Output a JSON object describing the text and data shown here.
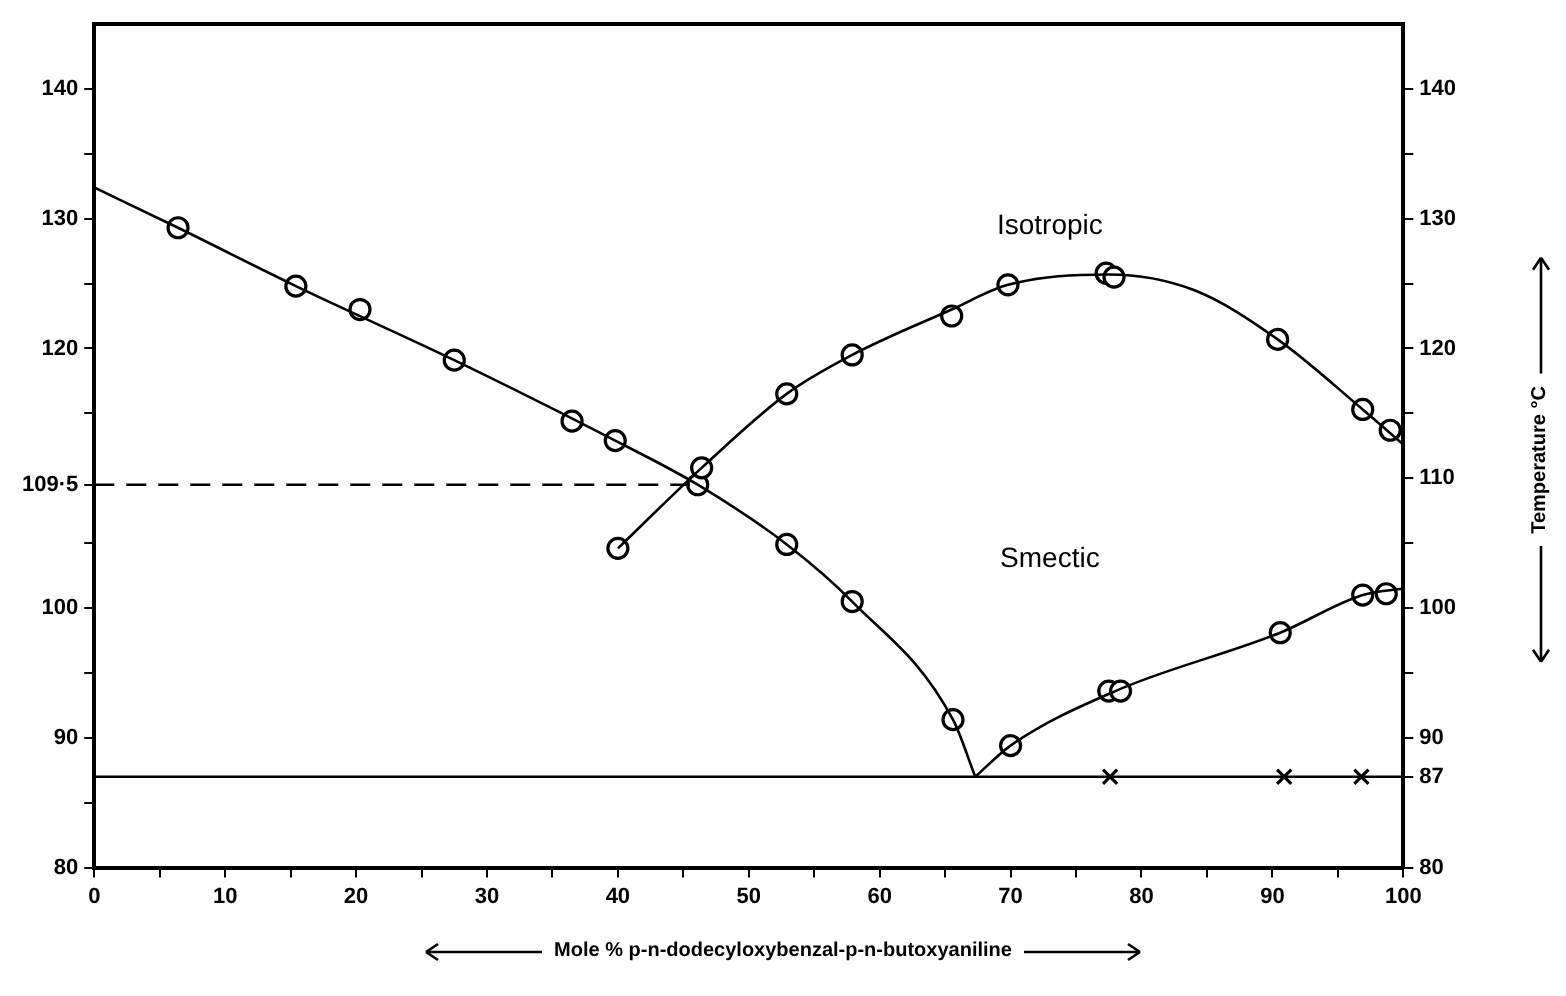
{
  "chart_data": {
    "type": "line",
    "xlabel": "Mole % p-n-dodecyloxybenzal-p-n-butoxyaniline",
    "y2label": "Temperature °C",
    "xlim": [
      0,
      100
    ],
    "xticks": [
      0,
      {
        "value": 5,
        "label": null
      },
      10,
      {
        "value": 15,
        "label": null
      },
      20,
      {
        "value": 25,
        "label": null
      },
      30,
      {
        "value": 35,
        "label": null
      },
      40,
      {
        "value": 45,
        "label": null
      },
      50,
      {
        "value": 55,
        "label": null
      },
      60,
      {
        "value": 65,
        "label": null
      },
      70,
      {
        "value": 75,
        "label": null
      },
      80,
      {
        "value": 85,
        "label": null
      },
      90,
      {
        "value": 95,
        "label": null
      },
      100
    ],
    "ylim": [
      80,
      145
    ],
    "yticks": [
      80,
      {
        "value": 85,
        "label": null
      },
      90,
      {
        "value": 95,
        "label": null
      },
      100,
      {
        "value": 105,
        "label": null
      },
      {
        "value": 109.5,
        "label": "109·5"
      },
      {
        "value": 115,
        "label": null
      },
      120,
      {
        "value": 125,
        "label": null
      },
      130,
      {
        "value": 135,
        "label": null
      },
      140
    ],
    "y2lim": [
      80,
      145
    ],
    "y2ticks": [
      80,
      87,
      90,
      {
        "value": 95,
        "label": null
      },
      100,
      {
        "value": 105,
        "label": null
      },
      110,
      {
        "value": 115,
        "label": null
      },
      120,
      {
        "value": 125,
        "label": null
      },
      130,
      {
        "value": 135,
        "label": null
      },
      140
    ],
    "grid": false,
    "series": [
      {
        "marker": "none",
        "line_style": "solid",
        "color": "#000000",
        "x": [
          0,
          6.4,
          15.4,
          27.5,
          39.8,
          46.1,
          52.9,
          57.9,
          65.6,
          67.3
        ],
        "values": [
          132.4,
          129.3,
          124.8,
          119.1,
          112.9,
          109.5,
          104.9,
          100.5,
          91.4,
          87
        ]
      },
      {
        "marker": "none",
        "line_style": "solid",
        "color": "#000000",
        "x": [
          40,
          46.4,
          52.9,
          57.9,
          65.5,
          69.8,
          77.5,
          84,
          90.4,
          96.9,
          100
        ],
        "values": [
          104.6,
          110.8,
          116.5,
          119.5,
          123,
          124.9,
          125.7,
          124.5,
          120.7,
          115.3,
          112.6
        ]
      },
      {
        "marker": "none",
        "line_style": "solid",
        "color": "#000000",
        "x": [
          67.3,
          70,
          78,
          90.6,
          96.9,
          100
        ],
        "values": [
          87,
          89.4,
          93.6,
          98.1,
          101,
          101.5
        ]
      },
      {
        "marker": "none",
        "line_style": "solid",
        "color": "#000000",
        "x": [
          0,
          100
        ],
        "values": [
          87,
          87
        ]
      },
      {
        "marker": "none",
        "line_style": "dashed",
        "color": "#000000",
        "x": [
          0,
          45.5
        ],
        "values": [
          109.5,
          109.5
        ]
      },
      {
        "type": "scatter",
        "marker": "circle",
        "color": "#000000",
        "x": [
          6.4,
          15.4,
          20.3,
          27.5,
          36.5,
          39.8,
          46.1,
          52.9,
          57.9,
          65.6,
          40,
          46.4,
          52.9,
          57.9,
          65.5,
          69.8,
          77.3,
          77.9,
          90.4,
          96.9,
          99,
          70,
          77.5,
          78.4,
          90.6,
          96.9,
          98.7
        ],
        "values": [
          129.3,
          124.8,
          123,
          119.1,
          114.4,
          112.9,
          109.5,
          104.9,
          100.5,
          91.4,
          104.6,
          110.8,
          116.5,
          119.5,
          122.5,
          124.9,
          125.8,
          125.5,
          120.7,
          115.3,
          113.7,
          89.4,
          93.6,
          93.6,
          98.1,
          101,
          101.1
        ]
      },
      {
        "type": "scatter",
        "marker": "cross",
        "color": "#000000",
        "x": [
          77.6,
          90.9,
          96.8
        ],
        "values": [
          87,
          87,
          87
        ]
      }
    ],
    "annotations": [
      "Isotropic",
      "Smectic"
    ]
  }
}
